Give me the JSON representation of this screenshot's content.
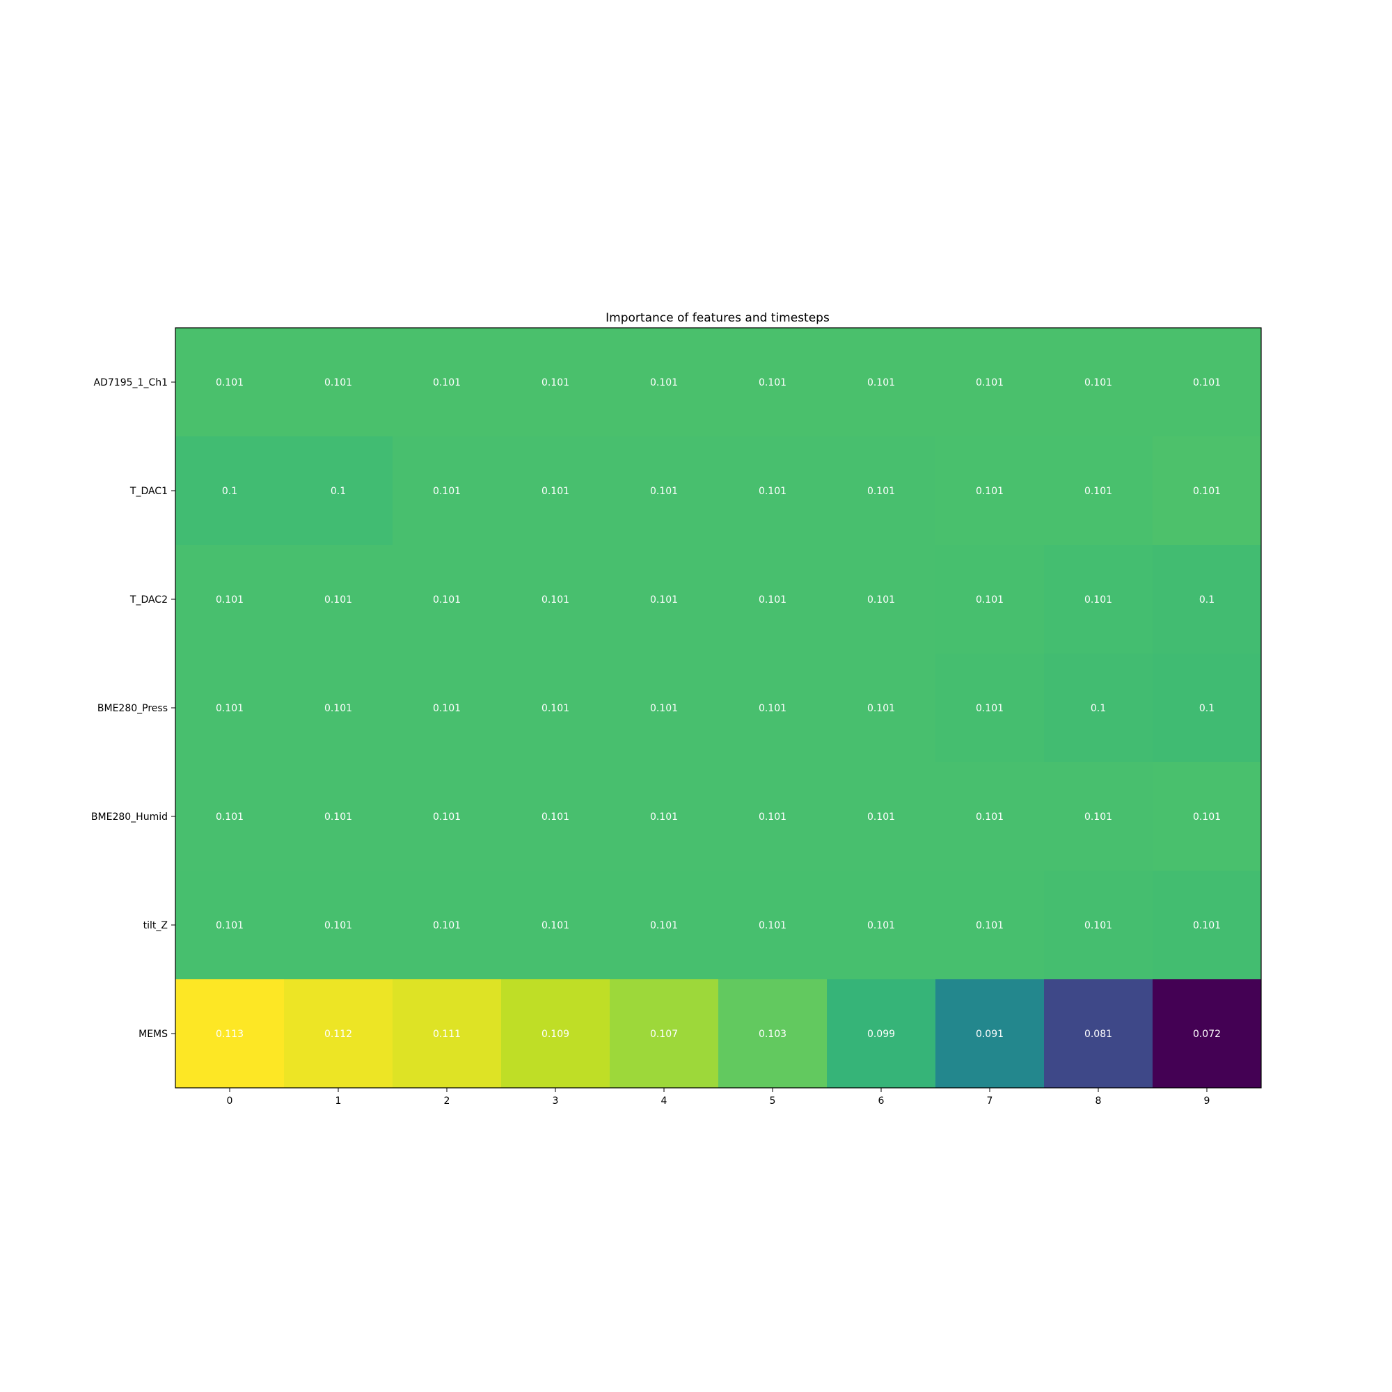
{
  "chart_data": {
    "type": "heatmap",
    "title": "Importance of features and timesteps",
    "x_categories": [
      "0",
      "1",
      "2",
      "3",
      "4",
      "5",
      "6",
      "7",
      "8",
      "9"
    ],
    "y_categories": [
      "AD7195_1_Ch1",
      "T_DAC1",
      "T_DAC2",
      "BME280_Press",
      "BME280_Humid",
      "tilt_Z",
      "MEMS"
    ],
    "values": [
      [
        0.1012,
        0.1012,
        0.1012,
        0.1012,
        0.1012,
        0.1012,
        0.1012,
        0.1012,
        0.1012,
        0.1012
      ],
      [
        0.1003,
        0.1003,
        0.101,
        0.101,
        0.101,
        0.101,
        0.101,
        0.1011,
        0.1011,
        0.1014
      ],
      [
        0.101,
        0.101,
        0.101,
        0.101,
        0.101,
        0.101,
        0.101,
        0.1009,
        0.1007,
        0.1004
      ],
      [
        0.101,
        0.101,
        0.101,
        0.101,
        0.101,
        0.101,
        0.101,
        0.1008,
        0.1004,
        0.1002
      ],
      [
        0.101,
        0.101,
        0.101,
        0.101,
        0.101,
        0.101,
        0.101,
        0.101,
        0.101,
        0.1011
      ],
      [
        0.1009,
        0.1009,
        0.1009,
        0.1009,
        0.1009,
        0.1009,
        0.1009,
        0.1009,
        0.1008,
        0.1006
      ],
      [
        0.113,
        0.112,
        0.111,
        0.109,
        0.107,
        0.103,
        0.099,
        0.091,
        0.081,
        0.072
      ]
    ],
    "cell_labels": [
      [
        "0.101",
        "0.101",
        "0.101",
        "0.101",
        "0.101",
        "0.101",
        "0.101",
        "0.101",
        "0.101",
        "0.101"
      ],
      [
        "0.1",
        "0.1",
        "0.101",
        "0.101",
        "0.101",
        "0.101",
        "0.101",
        "0.101",
        "0.101",
        "0.101"
      ],
      [
        "0.101",
        "0.101",
        "0.101",
        "0.101",
        "0.101",
        "0.101",
        "0.101",
        "0.101",
        "0.101",
        "0.1"
      ],
      [
        "0.101",
        "0.101",
        "0.101",
        "0.101",
        "0.101",
        "0.101",
        "0.101",
        "0.101",
        "0.1",
        "0.1"
      ],
      [
        "0.101",
        "0.101",
        "0.101",
        "0.101",
        "0.101",
        "0.101",
        "0.101",
        "0.101",
        "0.101",
        "0.101"
      ],
      [
        "0.101",
        "0.101",
        "0.101",
        "0.101",
        "0.101",
        "0.101",
        "0.101",
        "0.101",
        "0.101",
        "0.101"
      ],
      [
        "0.113",
        "0.112",
        "0.111",
        "0.109",
        "0.107",
        "0.103",
        "0.099",
        "0.091",
        "0.081",
        "0.072"
      ]
    ],
    "colormap": "viridis",
    "value_range": [
      0.072,
      0.113
    ],
    "grid": false,
    "legend": "none"
  }
}
